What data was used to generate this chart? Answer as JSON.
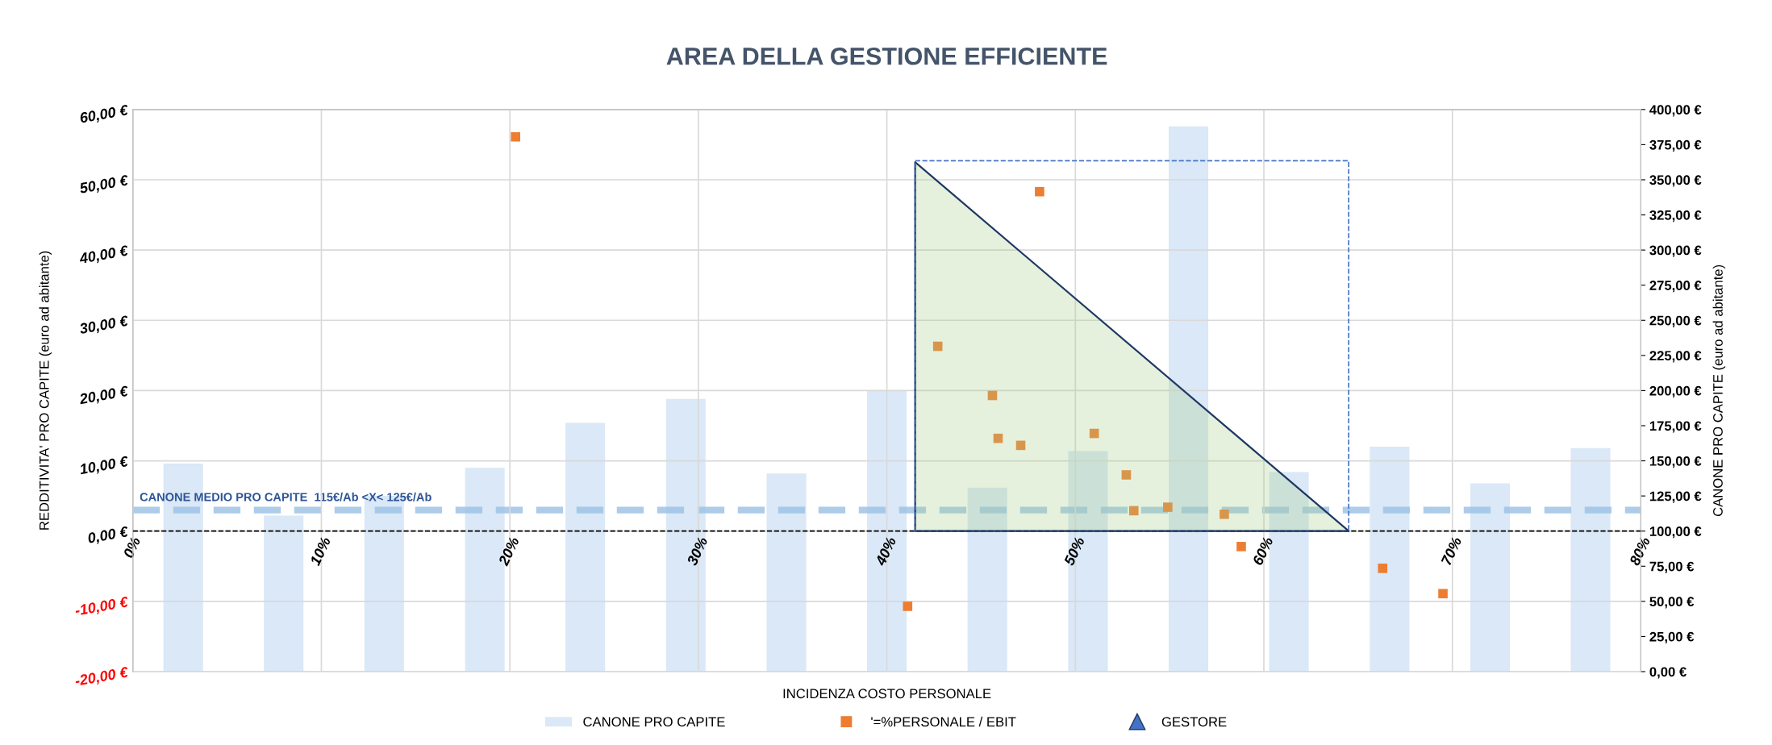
{
  "chart_data": {
    "type": "scatter",
    "title": "AREA DELLA GESTIONE EFFICIENTE",
    "xlabel": "INCIDENZA COSTO PERSONALE",
    "ylabel": "REDDITIVITA' PRO CAPITE (euro ad abitante)",
    "y2label": "CANONE PRO CAPITE (euro ad abitante)",
    "xlim": [
      0,
      80
    ],
    "xticks": [
      {
        "value": 0,
        "label": "0%"
      },
      {
        "value": 10,
        "label": "10%"
      },
      {
        "value": 20,
        "label": "20%"
      },
      {
        "value": 30,
        "label": "30%"
      },
      {
        "value": 40,
        "label": "40%"
      },
      {
        "value": 50,
        "label": "50%"
      },
      {
        "value": 60,
        "label": "60%"
      },
      {
        "value": 70,
        "label": "70%"
      },
      {
        "value": 80,
        "label": "80%"
      }
    ],
    "ylim": [
      -20,
      60
    ],
    "yticks": [
      {
        "value": -20,
        "label": "-20,00 €"
      },
      {
        "value": -10,
        "label": "-10,00 €"
      },
      {
        "value": 0,
        "label": "0,00 €"
      },
      {
        "value": 10,
        "label": "10,00 €"
      },
      {
        "value": 20,
        "label": "20,00 €"
      },
      {
        "value": 30,
        "label": "30,00 €"
      },
      {
        "value": 40,
        "label": "40,00 €"
      },
      {
        "value": 50,
        "label": "50,00 €"
      },
      {
        "value": 60,
        "label": "60,00 €"
      }
    ],
    "y2lim": [
      0,
      400
    ],
    "y2ticks": [
      {
        "value": 0,
        "label": "0,00 €"
      },
      {
        "value": 25,
        "label": "25,00 €"
      },
      {
        "value": 50,
        "label": "50,00 €"
      },
      {
        "value": 75,
        "label": "75,00 €"
      },
      {
        "value": 100,
        "label": "100,00 €"
      },
      {
        "value": 125,
        "label": "125,00 €"
      },
      {
        "value": 150,
        "label": "150,00 €"
      },
      {
        "value": 175,
        "label": "175,00 €"
      },
      {
        "value": 200,
        "label": "200,00 €"
      },
      {
        "value": 225,
        "label": "225,00 €"
      },
      {
        "value": 250,
        "label": "250,00 €"
      },
      {
        "value": 275,
        "label": "275,00 €"
      },
      {
        "value": 300,
        "label": "300,00 €"
      },
      {
        "value": 325,
        "label": "325,00 €"
      },
      {
        "value": 350,
        "label": "350,00 €"
      },
      {
        "value": 375,
        "label": "375,00 €"
      },
      {
        "value": 400,
        "label": "400,00 €"
      }
    ],
    "grid": true,
    "legend": "bottom",
    "ref_lines": [
      {
        "axis": "y2",
        "value": 115,
        "label": "CANONE MEDIO PRO CAPITE  115€/Ab <X< 125€/Ab",
        "color": "#9dc3e6",
        "line_style": "dashed"
      },
      {
        "axis": "y",
        "value": 0,
        "color": "#000000",
        "line_style": "dashed"
      }
    ],
    "series": [
      {
        "name": "CANONE PRO CAPITE",
        "type": "bar",
        "axis": "y2",
        "color": "#dae8f7",
        "x": [
          2.67,
          8,
          13.33,
          18.67,
          24,
          29.33,
          34.67,
          40,
          45.33,
          50.67,
          56,
          61.33,
          66.67,
          72,
          77.33
        ],
        "values": [
          148,
          111,
          125,
          145,
          177,
          194,
          141,
          200,
          131,
          157,
          388,
          142,
          160,
          134,
          159
        ]
      },
      {
        "name": "'=%PERSONALE / EBIT",
        "marker": "square",
        "color": "#ed7d31",
        "x": [
          20.3,
          41.1,
          42.7,
          45.6,
          45.9,
          47.1,
          48.1,
          51.0,
          52.7,
          53.1,
          54.9,
          57.9,
          58.8,
          66.3,
          69.5
        ],
        "values": [
          56.1,
          -10.7,
          26.3,
          19.3,
          13.2,
          12.2,
          48.3,
          13.9,
          8.0,
          2.9,
          3.4,
          2.4,
          -2.2,
          -5.3,
          -8.9
        ]
      },
      {
        "type": "area",
        "color": "#a9d18e",
        "x": [
          41.5,
          41.5,
          64.5
        ],
        "values": [
          0,
          52.5,
          0
        ]
      },
      {
        "type": "line",
        "line_style": "dashed",
        "color": "#4472c4",
        "x": [
          41.5,
          41.5,
          64.5,
          64.5
        ],
        "values": [
          0,
          52.7,
          52.7,
          0
        ]
      },
      {
        "name": "GESTORE",
        "marker": "triangle",
        "color": "#4472c4"
      }
    ]
  }
}
